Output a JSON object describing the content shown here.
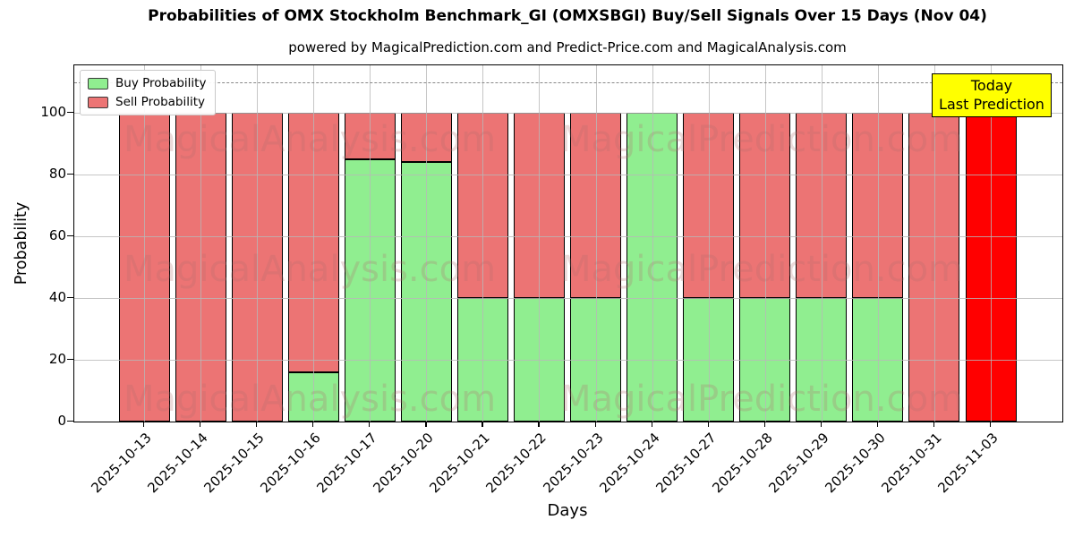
{
  "title": "Probabilities of OMX Stockholm Benchmark_GI (OMXSBGI) Buy/Sell Signals Over 15 Days (Nov 04)",
  "subtitle": "powered by MagicalPrediction.com and Predict-Price.com and MagicalAnalysis.com",
  "legend": {
    "buy_label": "Buy Probability",
    "sell_label": "Sell Probability"
  },
  "annotation_box": {
    "line1": "Today",
    "line2": "Last Prediction",
    "bg_color": "#ffff00"
  },
  "watermarks": [
    "MagicalAnalysis.com",
    "MagicalPrediction.com"
  ],
  "colors": {
    "buy": "#90ee90",
    "sell": "#ec7474",
    "today_bar": "#ff0000",
    "bar_edge": "#000000",
    "grid": "#b8b8b8",
    "dashed_line": "#888888",
    "annotation_bg": "#ffff00"
  },
  "chart_data": {
    "type": "bar",
    "stacked": true,
    "title": "Probabilities of OMX Stockholm Benchmark_GI (OMXSBGI) Buy/Sell Signals Over 15 Days (Nov 04)",
    "xlabel": "Days",
    "ylabel": "Probability",
    "categories": [
      "2025-10-13",
      "2025-10-14",
      "2025-10-15",
      "2025-10-16",
      "2025-10-17",
      "2025-10-20",
      "2025-10-21",
      "2025-10-22",
      "2025-10-23",
      "2025-10-24",
      "2025-10-27",
      "2025-10-28",
      "2025-10-29",
      "2025-10-30",
      "2025-10-31",
      "2025-11-03"
    ],
    "series": [
      {
        "name": "Buy Probability",
        "color": "#90ee90",
        "values": [
          0,
          0,
          0,
          16,
          85,
          84,
          40,
          40,
          40,
          100,
          40,
          40,
          40,
          40,
          0,
          0
        ]
      },
      {
        "name": "Sell Probability",
        "color": "#ec7474",
        "values": [
          100,
          100,
          100,
          84,
          15,
          16,
          60,
          60,
          60,
          0,
          60,
          60,
          60,
          60,
          100,
          100
        ]
      }
    ],
    "today_bar_index": 15,
    "yticks": [
      0,
      20,
      40,
      60,
      80,
      100
    ],
    "ylim": [
      0,
      115.4
    ],
    "dashed_line_y": 110,
    "grid": true,
    "legend_position": "upper left"
  }
}
